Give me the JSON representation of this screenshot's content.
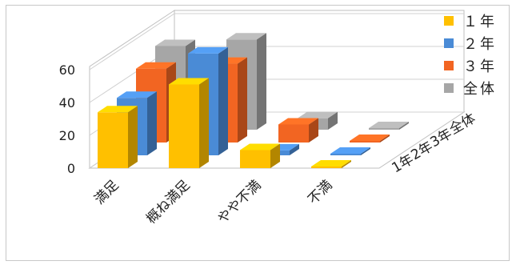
{
  "chart_data": {
    "type": "bar",
    "variant": "3d-clustered-depth",
    "title": "",
    "xlabel": "",
    "ylabel": "",
    "ylim": [
      0,
      60
    ],
    "yticks": [
      0,
      20,
      40,
      60
    ],
    "grid": true,
    "legend_position": "right",
    "categories": [
      "満足",
      "概ね満足",
      "やや不満",
      "不満"
    ],
    "depth_labels": [
      "1年",
      "2年",
      "3年",
      "全体"
    ],
    "series": [
      {
        "name": "１年",
        "color": "#FFC000",
        "values": [
          34,
          51,
          11,
          1
        ]
      },
      {
        "name": "２年",
        "color": "#4A8BD6",
        "values": [
          35,
          62,
          3,
          1
        ]
      },
      {
        "name": "３年",
        "color": "#F26522",
        "values": [
          45,
          48,
          11,
          1
        ]
      },
      {
        "name": "全体",
        "color": "#A6A6A6",
        "values": [
          51,
          55,
          7,
          1
        ]
      }
    ]
  }
}
